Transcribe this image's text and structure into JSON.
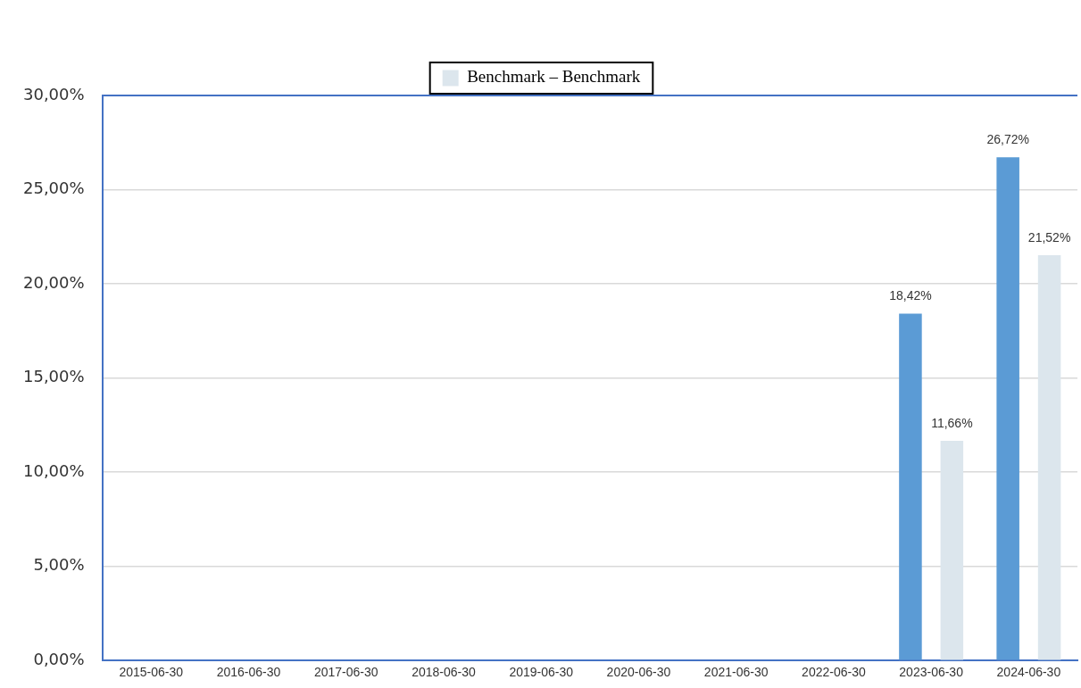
{
  "chart_data": {
    "type": "bar",
    "categories": [
      "2015-06-30",
      "2016-06-30",
      "2017-06-30",
      "2018-06-30",
      "2019-06-30",
      "2020-06-30",
      "2021-06-30",
      "2022-06-30",
      "2023-06-30",
      "2024-06-30"
    ],
    "series": [
      {
        "color": "#5b9bd5",
        "values": [
          null,
          null,
          null,
          null,
          null,
          null,
          null,
          null,
          18.42,
          26.72
        ],
        "value_labels": [
          null,
          null,
          null,
          null,
          null,
          null,
          null,
          null,
          "18,42%",
          "26,72%"
        ]
      },
      {
        "name": "Benchmark – Benchmark",
        "color": "#dce6ed",
        "values": [
          null,
          null,
          null,
          null,
          null,
          null,
          null,
          null,
          11.66,
          21.52
        ],
        "value_labels": [
          null,
          null,
          null,
          null,
          null,
          null,
          null,
          null,
          "11,66%",
          "21,52%"
        ]
      }
    ],
    "ylim": [
      0,
      30
    ],
    "yticks": [
      {
        "value": 0,
        "label": "0,00%"
      },
      {
        "value": 5,
        "label": "5,00%"
      },
      {
        "value": 10,
        "label": "10,00%"
      },
      {
        "value": 15,
        "label": "15,00%"
      },
      {
        "value": 20,
        "label": "20,00%"
      },
      {
        "value": 25,
        "label": "25,00%"
      },
      {
        "value": 30,
        "label": "30,00%"
      }
    ],
    "grid": "y",
    "legend": "top"
  }
}
